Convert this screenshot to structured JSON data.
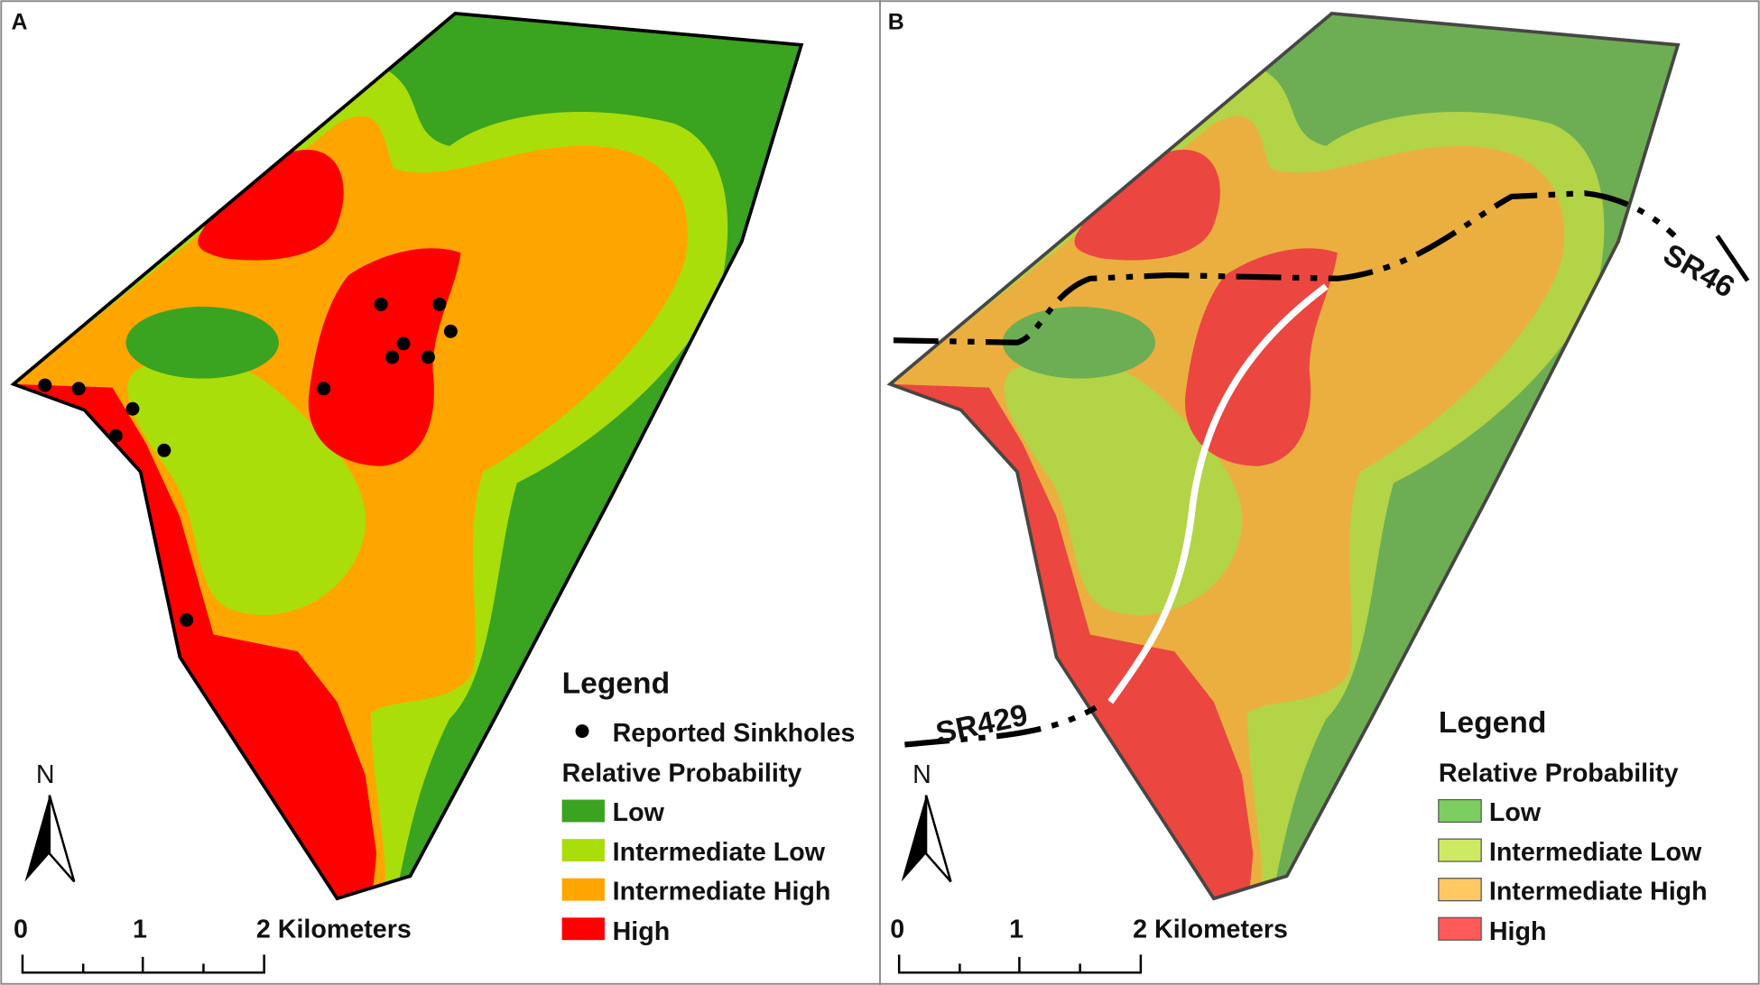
{
  "panels": [
    {
      "label": "A",
      "legend": {
        "title": "Legend",
        "point_item": "Reported Sinkholes",
        "subtitle": "Relative Probability",
        "items": [
          "Low",
          "Intermediate Low",
          "Intermediate High",
          "High"
        ]
      },
      "north": "N",
      "scale": [
        "0",
        "1",
        "2 Kilometers"
      ]
    },
    {
      "label": "B",
      "roads": [
        "SR429",
        "SR46"
      ],
      "legend": {
        "title": "Legend",
        "subtitle": "Relative Probability",
        "items": [
          "Low",
          "Intermediate Low",
          "Intermediate High",
          "High"
        ]
      },
      "north": "N",
      "scale": [
        "0",
        "1",
        "2 Kilometers"
      ]
    }
  ]
}
